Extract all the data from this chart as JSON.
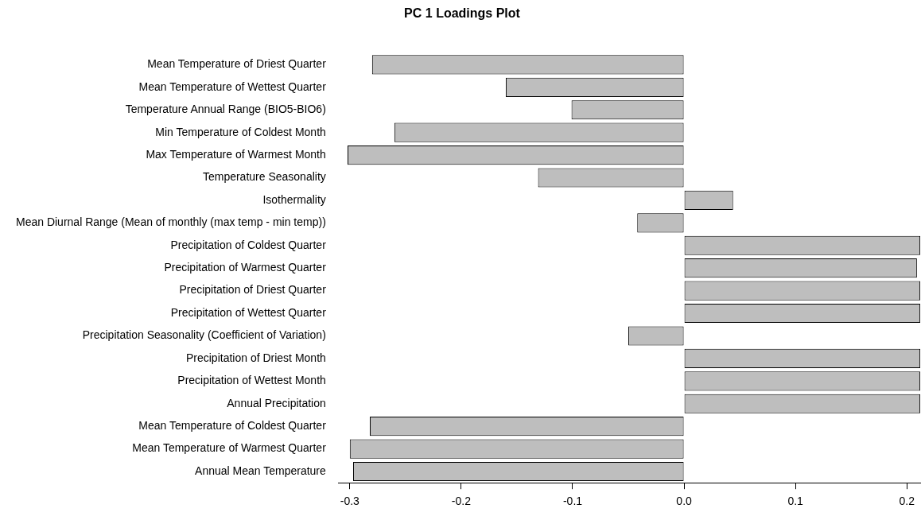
{
  "chart_data": {
    "type": "bar",
    "orientation": "horizontal",
    "title": "PC 1 Loadings Plot",
    "categories": [
      "Mean Temperature of Driest Quarter",
      "Mean Temperature of Wettest Quarter",
      "Temperature Annual Range (BIO5-BIO6)",
      "Min Temperature of Coldest Month",
      "Max Temperature of Warmest Month",
      "Temperature Seasonality",
      "Isothermality",
      "Mean Diurnal Range (Mean of monthly (max temp - min temp))",
      "Precipitation of Coldest Quarter",
      "Precipitation of Warmest Quarter",
      "Precipitation of Driest Quarter",
      "Precipitation of Wettest Quarter",
      "Precipitation Seasonality (Coefficient of Variation)",
      "Precipitation of Driest Month",
      "Precipitation of Wettest Month",
      "Annual Precipitation",
      "Mean Temperature of Coldest Quarter",
      "Mean Temperature of Warmest Quarter",
      "Annual Mean Temperature"
    ],
    "values": [
      -0.28,
      -0.16,
      -0.101,
      -0.26,
      -0.302,
      -0.131,
      0.044,
      -0.042,
      0.212,
      0.209,
      0.212,
      0.212,
      -0.05,
      0.212,
      0.212,
      0.212,
      -0.282,
      -0.3,
      -0.297
    ],
    "color": "#bebebe",
    "xlim": [
      -0.31,
      0.212
    ],
    "xticks": [
      {
        "value": -0.3,
        "label": "-0.3"
      },
      {
        "value": -0.2,
        "label": "-0.2"
      },
      {
        "value": -0.1,
        "label": "-0.1"
      },
      {
        "value": 0,
        "label": "0.0"
      },
      {
        "value": 0.1,
        "label": "0.1"
      },
      {
        "value": 0.2,
        "label": "0.2"
      }
    ],
    "grid": false,
    "legend": false
  }
}
